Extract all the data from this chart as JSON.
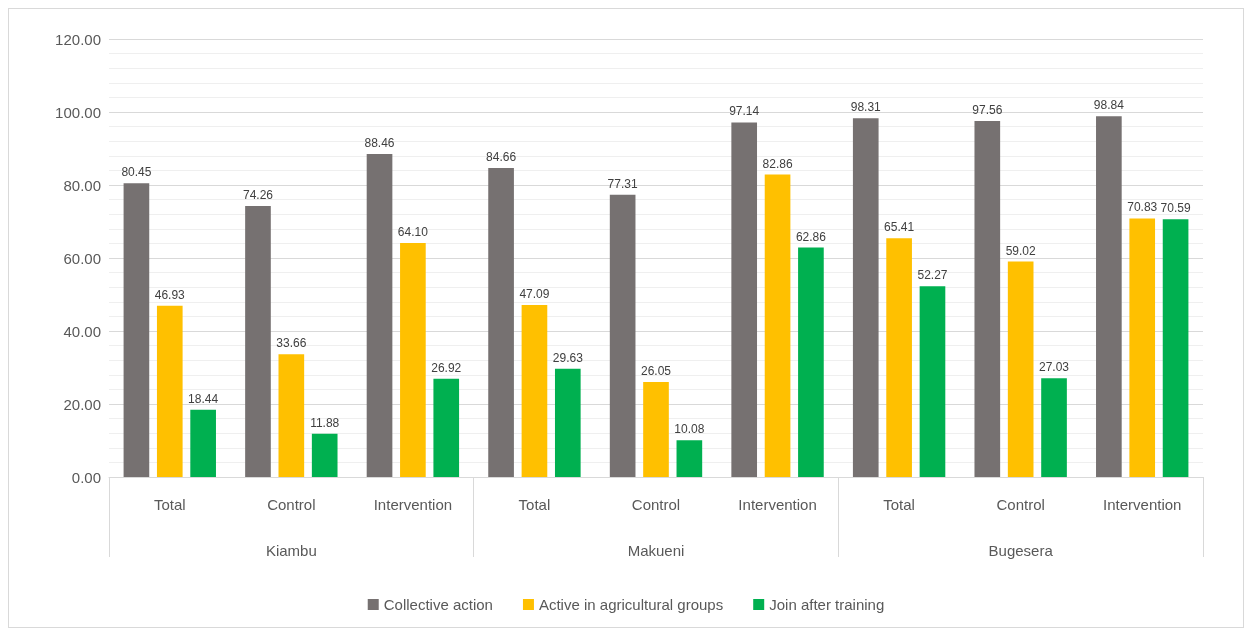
{
  "chart_data": {
    "type": "bar",
    "categories": [
      "Total",
      "Control",
      "Intervention",
      "Total",
      "Control",
      "Intervention",
      "Total",
      "Control",
      "Intervention"
    ],
    "annotations": [
      "Kiambu",
      "Makueni",
      "Bugesera"
    ],
    "series": [
      {
        "name": "Collective action",
        "color": "#767171",
        "values": [
          80.45,
          74.26,
          88.46,
          84.66,
          77.31,
          97.14,
          98.31,
          97.56,
          98.84
        ],
        "value_labels": [
          "80.45",
          "74.26",
          "88.46",
          "84.66",
          "77.31",
          "97.14",
          "98.31",
          "97.56",
          "98.84"
        ]
      },
      {
        "name": "Active in agricultural groups",
        "color": "#ffc000",
        "values": [
          46.93,
          33.66,
          64.1,
          47.09,
          26.05,
          82.86,
          65.41,
          59.02,
          70.83
        ],
        "value_labels": [
          "46.93",
          "33.66",
          "64.10",
          "47.09",
          "26.05",
          "82.86",
          "65.41",
          "59.02",
          "70.83"
        ]
      },
      {
        "name": "Join after training",
        "color": "#00b050",
        "values": [
          18.44,
          11.88,
          26.92,
          29.63,
          10.08,
          62.86,
          52.27,
          27.03,
          70.59
        ],
        "value_labels": [
          "18.44",
          "11.88",
          "26.92",
          "29.63",
          "10.08",
          "62.86",
          "52.27",
          "27.03",
          "70.59"
        ]
      }
    ],
    "ylim": [
      0,
      120
    ],
    "yticks": [
      {
        "value": 0,
        "label": "0.00"
      },
      {
        "value": 20,
        "label": "20.00"
      },
      {
        "value": 40,
        "label": "40.00"
      },
      {
        "value": 60,
        "label": "60.00"
      },
      {
        "value": 80,
        "label": "80.00"
      },
      {
        "value": 100,
        "label": "100.00"
      },
      {
        "value": 120,
        "label": "120.00"
      }
    ],
    "grid": "y",
    "legend": "bottom"
  }
}
